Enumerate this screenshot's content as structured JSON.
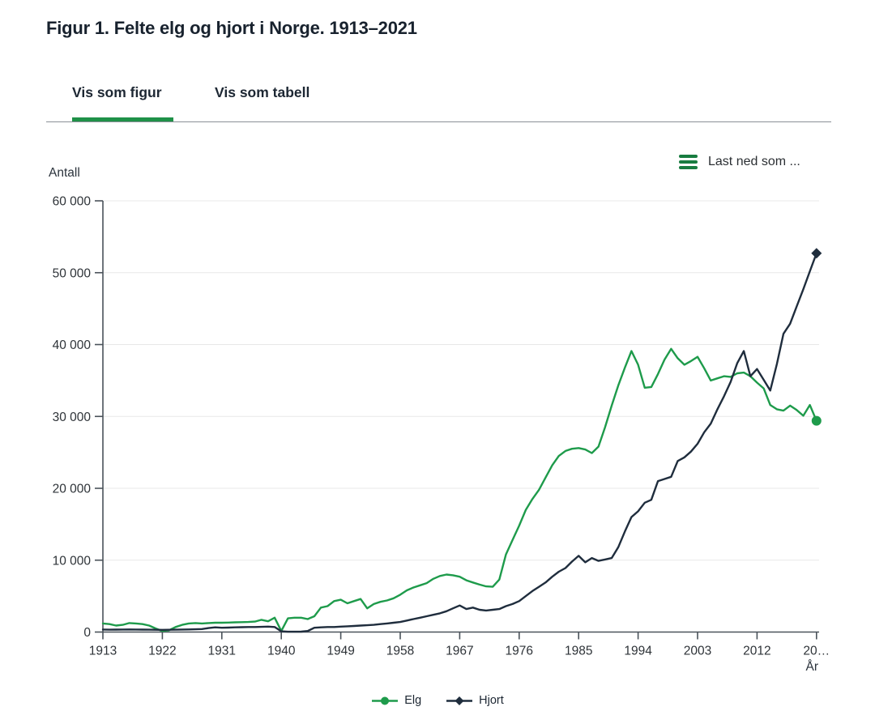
{
  "page": {
    "title": "Figur 1. Felte elg og hjort i Norge. 1913–2021"
  },
  "tabs": [
    {
      "label": "Vis som figur",
      "active": true
    },
    {
      "label": "Vis som tabell",
      "active": false
    }
  ],
  "download_menu": {
    "label": "Last ned som ..."
  },
  "colors": {
    "accent_green": "#1e9b4b",
    "dark_navy": "#1f2d3d",
    "tab_underline": "#1f9148",
    "gridline": "#e8e8e8",
    "axis": "#4a525a"
  },
  "chart_data": {
    "type": "line",
    "title": "Felte elg og hjort i Norge. 1913–2021",
    "ylabel": "Antall",
    "xlabel": "År",
    "ylim": [
      0,
      60000
    ],
    "grid": true,
    "legend_position": "bottom",
    "y_ticks": [
      {
        "value": 0,
        "label": "0"
      },
      {
        "value": 10000,
        "label": "10 000"
      },
      {
        "value": 20000,
        "label": "20 000"
      },
      {
        "value": 30000,
        "label": "30 000"
      },
      {
        "value": 40000,
        "label": "40 000"
      },
      {
        "value": 50000,
        "label": "50 000"
      },
      {
        "value": 60000,
        "label": "60 000"
      }
    ],
    "x_ticks": [
      {
        "value": 1913,
        "label": "1913"
      },
      {
        "value": 1922,
        "label": "1922"
      },
      {
        "value": 1931,
        "label": "1931"
      },
      {
        "value": 1940,
        "label": "1940"
      },
      {
        "value": 1949,
        "label": "1949"
      },
      {
        "value": 1958,
        "label": "1958"
      },
      {
        "value": 1967,
        "label": "1967"
      },
      {
        "value": 1976,
        "label": "1976"
      },
      {
        "value": 1985,
        "label": "1985"
      },
      {
        "value": 1994,
        "label": "1994"
      },
      {
        "value": 2003,
        "label": "2003"
      },
      {
        "value": 2012,
        "label": "2012"
      },
      {
        "value": 2021,
        "label": "20…"
      }
    ],
    "years": [
      1913,
      1914,
      1915,
      1916,
      1917,
      1918,
      1919,
      1920,
      1921,
      1922,
      1923,
      1924,
      1925,
      1926,
      1927,
      1928,
      1929,
      1930,
      1931,
      1932,
      1933,
      1934,
      1935,
      1936,
      1937,
      1938,
      1939,
      1940,
      1941,
      1942,
      1943,
      1944,
      1945,
      1946,
      1947,
      1948,
      1949,
      1950,
      1951,
      1952,
      1953,
      1954,
      1955,
      1956,
      1957,
      1958,
      1959,
      1960,
      1961,
      1962,
      1963,
      1964,
      1965,
      1966,
      1967,
      1968,
      1969,
      1970,
      1971,
      1972,
      1973,
      1974,
      1975,
      1976,
      1977,
      1978,
      1979,
      1980,
      1981,
      1982,
      1983,
      1984,
      1985,
      1986,
      1987,
      1988,
      1989,
      1990,
      1991,
      1992,
      1993,
      1994,
      1995,
      1996,
      1997,
      1998,
      1999,
      2000,
      2001,
      2002,
      2003,
      2004,
      2005,
      2006,
      2007,
      2008,
      2009,
      2010,
      2011,
      2012,
      2013,
      2014,
      2015,
      2016,
      2017,
      2018,
      2019,
      2020,
      2021
    ],
    "series": [
      {
        "name": "Elg",
        "color": "#1e9b4b",
        "marker": "circle",
        "values": [
          1200,
          1100,
          900,
          1000,
          1250,
          1200,
          1100,
          900,
          500,
          150,
          250,
          700,
          1000,
          1200,
          1250,
          1200,
          1250,
          1300,
          1300,
          1320,
          1350,
          1380,
          1400,
          1450,
          1700,
          1500,
          2000,
          150,
          1900,
          2000,
          2000,
          1800,
          2200,
          3400,
          3600,
          4300,
          4500,
          4000,
          4300,
          4600,
          3300,
          3900,
          4200,
          4400,
          4700,
          5200,
          5800,
          6200,
          6500,
          6800,
          7400,
          7800,
          8000,
          7900,
          7700,
          7200,
          6900,
          6600,
          6350,
          6300,
          7300,
          10800,
          12800,
          14800,
          17000,
          18500,
          19800,
          21500,
          23200,
          24500,
          25200,
          25500,
          25600,
          25400,
          24900,
          25800,
          28500,
          31500,
          34300,
          36800,
          39100,
          37200,
          34000,
          34100,
          35900,
          37900,
          39400,
          38100,
          37200,
          37700,
          38300,
          36700,
          35000,
          35300,
          35600,
          35500,
          36000,
          36100,
          35600,
          34700,
          33900,
          31600,
          31000,
          30800,
          31500,
          30900,
          30100,
          31600,
          29400
        ]
      },
      {
        "name": "Hjort",
        "color": "#1f2d3d",
        "marker": "diamond",
        "values": [
          350,
          330,
          340,
          350,
          360,
          350,
          340,
          330,
          320,
          300,
          310,
          330,
          350,
          360,
          380,
          420,
          550,
          650,
          600,
          620,
          650,
          680,
          700,
          700,
          720,
          750,
          700,
          100,
          50,
          50,
          60,
          150,
          600,
          650,
          700,
          700,
          750,
          800,
          850,
          900,
          950,
          1000,
          1100,
          1200,
          1300,
          1400,
          1600,
          1800,
          2000,
          2200,
          2400,
          2600,
          2900,
          3300,
          3700,
          3200,
          3400,
          3100,
          3000,
          3100,
          3200,
          3600,
          3900,
          4300,
          5000,
          5700,
          6300,
          6900,
          7700,
          8400,
          8900,
          9800,
          10600,
          9700,
          10300,
          9900,
          10100,
          10300,
          11800,
          14000,
          16000,
          16800,
          18000,
          18400,
          21000,
          21300,
          21600,
          23800,
          24300,
          25100,
          26200,
          27800,
          29000,
          31000,
          32800,
          34800,
          37400,
          39100,
          35600,
          36600,
          35100,
          33600,
          37300,
          41500,
          42900,
          45300,
          47700,
          50200,
          52700
        ]
      }
    ]
  }
}
